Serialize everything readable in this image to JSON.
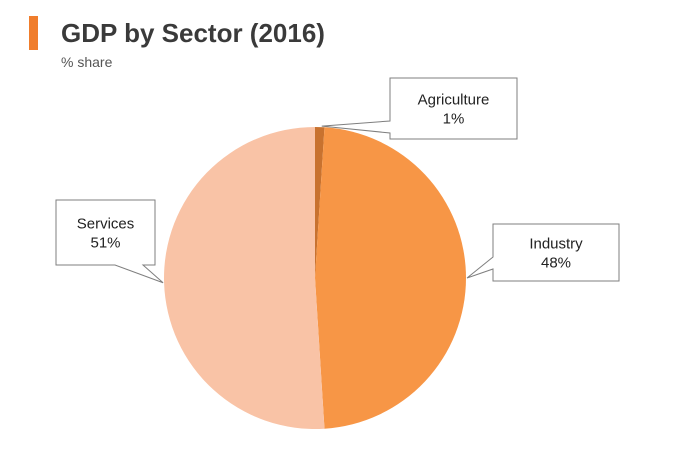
{
  "header": {
    "title": "GDP by Sector (2016)",
    "subtitle": "% share"
  },
  "colors": {
    "accent": "#F07D2C"
  },
  "chart_data": {
    "type": "pie",
    "title": "GDP by Sector (2016)",
    "subtitle": "% share",
    "slices": [
      {
        "label": "Agriculture",
        "value": 1,
        "value_label": "1%",
        "color": "#C8722F"
      },
      {
        "label": "Industry",
        "value": 48,
        "value_label": "48%",
        "color": "#F79646"
      },
      {
        "label": "Services",
        "value": 51,
        "value_label": "51%",
        "color": "#F9C3A6"
      }
    ],
    "start_angle_deg": 0,
    "direction": "clockwise",
    "data_labels": "callouts"
  }
}
